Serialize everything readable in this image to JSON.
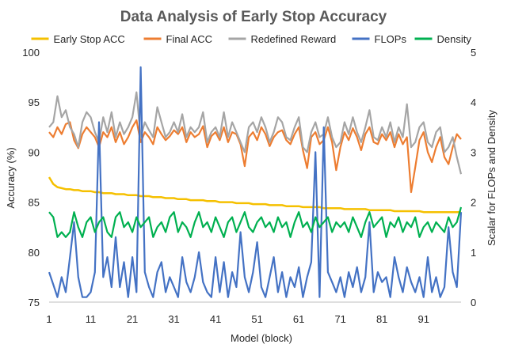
{
  "chart_data": {
    "type": "line",
    "title": "Data Analysis of Early Stop Accuracy",
    "xlabel": "Model (block)",
    "ylabel": "Accuracy (%)",
    "y2label": "Scalar for FLOPs and Density",
    "xlim": [
      1,
      100
    ],
    "ylim": [
      75,
      100
    ],
    "y2lim": [
      0,
      5
    ],
    "xticks": [
      "1",
      "11",
      "21",
      "31",
      "41",
      "51",
      "61",
      "71",
      "81",
      "91"
    ],
    "yticks": [
      "75",
      "80",
      "85",
      "90",
      "95",
      "100"
    ],
    "y2ticks": [
      "0",
      "1",
      "2",
      "3",
      "4",
      "5"
    ],
    "grid": false,
    "legend_position": "top",
    "series": [
      {
        "name": "Early Stop ACC",
        "axis": "left",
        "color": "#f5c000",
        "values": [
          87.5,
          86.8,
          86.5,
          86.4,
          86.3,
          86.3,
          86.2,
          86.2,
          86.1,
          86.1,
          86.1,
          86.0,
          86.0,
          85.9,
          85.9,
          85.9,
          85.8,
          85.8,
          85.8,
          85.7,
          85.7,
          85.7,
          85.6,
          85.6,
          85.6,
          85.5,
          85.5,
          85.5,
          85.4,
          85.4,
          85.4,
          85.3,
          85.3,
          85.3,
          85.2,
          85.2,
          85.2,
          85.2,
          85.1,
          85.1,
          85.1,
          85.0,
          85.0,
          85.0,
          85.0,
          84.9,
          84.9,
          84.9,
          84.9,
          84.8,
          84.8,
          84.8,
          84.8,
          84.7,
          84.7,
          84.7,
          84.7,
          84.6,
          84.6,
          84.6,
          84.6,
          84.5,
          84.5,
          84.5,
          84.5,
          84.5,
          84.4,
          84.4,
          84.4,
          84.4,
          84.4,
          84.3,
          84.3,
          84.3,
          84.3,
          84.3,
          84.3,
          84.2,
          84.2,
          84.2,
          84.2,
          84.2,
          84.2,
          84.1,
          84.1,
          84.1,
          84.1,
          84.1,
          84.1,
          84.1,
          84.0,
          84.0,
          84.0,
          84.0,
          84.0,
          84.0,
          84.0,
          84.0,
          84.0,
          84.0
        ]
      },
      {
        "name": "Final ACC",
        "axis": "left",
        "color": "#ed7d31",
        "values": [
          92.0,
          91.5,
          92.5,
          91.8,
          92.8,
          93.0,
          91.2,
          90.4,
          91.8,
          92.5,
          92.0,
          91.5,
          90.5,
          92.0,
          91.5,
          92.5,
          91.0,
          92.0,
          90.8,
          91.5,
          92.5,
          93.2,
          91.0,
          92.0,
          91.5,
          90.8,
          92.5,
          91.8,
          91.2,
          91.6,
          92.2,
          91.8,
          92.5,
          91.0,
          92.0,
          91.5,
          91.8,
          92.6,
          90.5,
          91.6,
          92.0,
          91.2,
          92.5,
          91.0,
          92.0,
          91.8,
          90.8,
          88.6,
          91.5,
          92.0,
          91.2,
          92.5,
          91.8,
          90.6,
          91.5,
          92.0,
          92.2,
          91.2,
          90.8,
          91.8,
          92.5,
          90.2,
          88.4,
          91.5,
          92.0,
          90.8,
          91.2,
          92.5,
          91.0,
          88.2,
          90.5,
          92.0,
          91.2,
          92.4,
          91.5,
          90.2,
          91.8,
          92.5,
          91.0,
          90.8,
          91.8,
          91.2,
          92.0,
          90.5,
          91.8,
          90.8,
          91.5,
          86.0,
          88.5,
          91.2,
          92.0,
          90.0,
          89.0,
          90.5,
          91.5,
          89.5,
          88.8,
          90.5,
          91.8,
          91.3
        ]
      },
      {
        "name": "Redefined Reward",
        "axis": "left",
        "color": "#a5a5a5",
        "values": [
          92.5,
          93.0,
          95.6,
          93.5,
          94.2,
          92.5,
          91.8,
          90.5,
          93.0,
          94.0,
          93.5,
          92.0,
          91.0,
          93.5,
          92.0,
          94.0,
          91.5,
          93.0,
          91.8,
          92.5,
          93.5,
          96.0,
          91.5,
          93.0,
          92.2,
          91.5,
          94.5,
          93.0,
          91.5,
          92.0,
          93.0,
          92.0,
          93.8,
          91.5,
          92.5,
          92.0,
          92.5,
          94.0,
          91.0,
          92.0,
          92.5,
          91.5,
          94.0,
          91.5,
          93.0,
          92.0,
          91.0,
          90.0,
          92.5,
          93.0,
          92.0,
          93.5,
          92.5,
          91.0,
          92.0,
          93.5,
          93.0,
          91.5,
          91.2,
          92.5,
          93.5,
          90.5,
          90.0,
          92.0,
          93.0,
          91.5,
          91.8,
          93.5,
          91.5,
          90.5,
          91.0,
          93.0,
          91.8,
          93.5,
          92.0,
          91.0,
          92.5,
          94.2,
          91.5,
          91.2,
          92.5,
          91.5,
          93.0,
          91.0,
          92.5,
          91.5,
          94.8,
          90.5,
          91.0,
          92.5,
          93.0,
          91.0,
          90.5,
          92.0,
          92.5,
          90.0,
          90.5,
          91.5,
          89.5,
          87.8
        ]
      },
      {
        "name": "FLOPs",
        "axis": "right",
        "color": "#4472c4",
        "values": [
          0.6,
          0.35,
          0.1,
          0.5,
          0.2,
          0.9,
          1.6,
          0.5,
          0.1,
          0.1,
          0.2,
          0.6,
          3.6,
          0.5,
          0.9,
          0.3,
          1.3,
          0.3,
          0.8,
          0.1,
          0.9,
          0.2,
          4.7,
          0.6,
          0.3,
          0.1,
          0.6,
          0.8,
          0.2,
          0.5,
          0.3,
          0.1,
          0.9,
          0.4,
          0.2,
          0.5,
          1.0,
          0.4,
          0.2,
          0.1,
          0.9,
          0.2,
          0.8,
          0.1,
          0.6,
          0.3,
          1.4,
          0.5,
          0.2,
          0.6,
          1.2,
          0.3,
          0.1,
          0.5,
          0.9,
          0.2,
          0.6,
          0.1,
          0.5,
          0.3,
          0.7,
          0.1,
          0.5,
          0.8,
          3.0,
          0.1,
          3.5,
          0.6,
          0.4,
          0.2,
          0.5,
          0.1,
          0.6,
          0.3,
          0.7,
          0.2,
          0.5,
          1.6,
          0.2,
          0.6,
          0.4,
          0.5,
          0.1,
          0.9,
          0.5,
          0.2,
          0.7,
          0.4,
          0.2,
          0.5,
          0.1,
          0.9,
          0.2,
          0.5,
          0.1,
          0.3,
          1.5,
          0.6,
          0.3,
          1.8
        ]
      },
      {
        "name": "Density",
        "axis": "right",
        "color": "#00b050",
        "values": [
          1.8,
          1.7,
          1.3,
          1.4,
          1.3,
          1.4,
          1.8,
          1.5,
          1.3,
          1.6,
          1.7,
          1.4,
          1.6,
          1.7,
          1.4,
          1.3,
          1.7,
          1.8,
          1.5,
          1.6,
          1.4,
          1.7,
          1.5,
          1.6,
          1.7,
          1.3,
          1.5,
          1.6,
          1.4,
          1.7,
          1.8,
          1.4,
          1.6,
          1.5,
          1.3,
          1.6,
          1.8,
          1.5,
          1.6,
          1.4,
          1.7,
          1.5,
          1.3,
          1.6,
          1.7,
          1.4,
          1.6,
          1.8,
          1.5,
          1.4,
          1.6,
          1.7,
          1.5,
          1.6,
          1.4,
          1.7,
          1.5,
          1.6,
          1.3,
          1.6,
          1.8,
          1.5,
          1.6,
          1.4,
          1.7,
          1.5,
          1.6,
          1.7,
          1.4,
          1.6,
          1.5,
          1.6,
          1.4,
          1.7,
          1.5,
          1.3,
          1.6,
          1.8,
          1.5,
          1.6,
          1.7,
          1.3,
          1.6,
          1.5,
          1.7,
          1.4,
          1.6,
          1.5,
          1.7,
          1.3,
          1.5,
          1.6,
          1.4,
          1.6,
          1.5,
          1.4,
          1.7,
          1.5,
          1.6,
          1.9
        ]
      }
    ]
  }
}
